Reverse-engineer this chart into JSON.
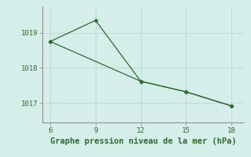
{
  "line1_x": [
    6,
    9,
    12,
    15,
    18
  ],
  "line1_y": [
    1018.75,
    1019.35,
    1017.62,
    1017.32,
    1016.92
  ],
  "line2_x": [
    6,
    12,
    15,
    18
  ],
  "line2_y": [
    1018.75,
    1017.62,
    1017.32,
    1016.92
  ],
  "color": "#2d6a2d",
  "bg_color": "#d6eeea",
  "grid_color": "#b8d8d4",
  "spine_color": "#888888",
  "xlabel": "Graphe pression niveau de la mer (hPa)",
  "xlabel_color": "#2d6a2d",
  "xlim": [
    5.5,
    18.8
  ],
  "ylim": [
    1016.45,
    1019.75
  ],
  "xticks": [
    6,
    9,
    12,
    15,
    18
  ],
  "yticks": [
    1017,
    1018,
    1019
  ],
  "marker": "D",
  "markersize": 2.5,
  "linewidth": 0.9,
  "tick_fontsize": 6.5,
  "xlabel_fontsize": 7.5
}
